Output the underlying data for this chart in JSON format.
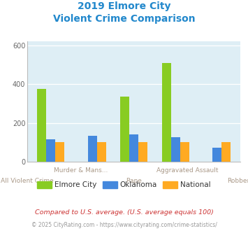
{
  "title_line1": "2019 Elmore City",
  "title_line2": "Violent Crime Comparison",
  "title_color": "#2288cc",
  "categories": [
    "All Violent Crime",
    "Murder & Mans...",
    "Rape",
    "Aggravated Assault",
    "Robbery"
  ],
  "elmore_city": [
    375,
    0,
    335,
    510,
    0
  ],
  "oklahoma": [
    115,
    135,
    140,
    128,
    72
  ],
  "national": [
    100,
    100,
    100,
    100,
    100
  ],
  "elmore_color": "#88cc22",
  "oklahoma_color": "#4488dd",
  "national_color": "#ffaa22",
  "bg_color": "#deeef5",
  "ylim_max": 620,
  "yticks": [
    0,
    200,
    400,
    600
  ],
  "footnote1": "Compared to U.S. average. (U.S. average equals 100)",
  "footnote2": "© 2025 CityRating.com - https://www.cityrating.com/crime-statistics/",
  "footnote1_color": "#cc3333",
  "footnote2_color": "#999999",
  "footnote2_url_color": "#4488cc",
  "legend_labels": [
    "Elmore City",
    "Oklahoma",
    "National"
  ],
  "tick_label_color": "#aa9988",
  "bar_width": 0.22
}
